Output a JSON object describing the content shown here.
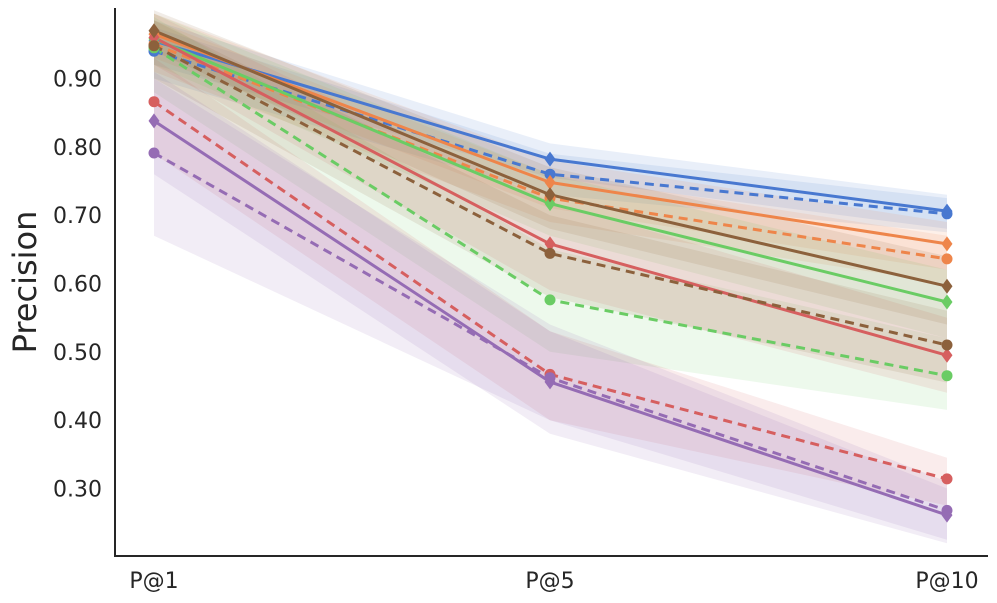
{
  "chart_data": {
    "type": "line",
    "title": "",
    "xlabel": "",
    "ylabel": "Precision",
    "categories": [
      "P@1",
      "P@5",
      "P@10"
    ],
    "ylim": [
      0.2,
      1.0
    ],
    "yticks": [
      "0.30",
      "0.40",
      "0.50",
      "0.60",
      "0.70",
      "0.80",
      "0.90"
    ],
    "grid": false,
    "legend": "none",
    "series": [
      {
        "color": "#4878d0",
        "dash": false,
        "marker": "diamond",
        "values": [
          0.955,
          0.782,
          0.706
        ],
        "band": [
          [
            0.985,
            0.92
          ],
          [
            0.805,
            0.755
          ],
          [
            0.73,
            0.68
          ]
        ]
      },
      {
        "color": "#4878d0",
        "dash": true,
        "marker": "circle",
        "values": [
          0.94,
          0.76,
          0.702
        ],
        "band": [
          [
            0.975,
            0.9
          ],
          [
            0.79,
            0.73
          ],
          [
            0.725,
            0.675
          ]
        ]
      },
      {
        "color": "#ee854a",
        "dash": false,
        "marker": "diamond",
        "values": [
          0.965,
          0.748,
          0.658
        ],
        "band": [
          [
            0.995,
            0.93
          ],
          [
            0.78,
            0.71
          ],
          [
            0.69,
            0.62
          ]
        ]
      },
      {
        "color": "#ee854a",
        "dash": true,
        "marker": "circle",
        "values": [
          0.95,
          0.725,
          0.636
        ],
        "band": [
          [
            0.985,
            0.91
          ],
          [
            0.76,
            0.69
          ],
          [
            0.67,
            0.6
          ]
        ]
      },
      {
        "color": "#6acc64",
        "dash": false,
        "marker": "diamond",
        "values": [
          0.958,
          0.717,
          0.573
        ],
        "band": [
          [
            0.995,
            0.92
          ],
          [
            0.76,
            0.67
          ],
          [
            0.62,
            0.52
          ]
        ]
      },
      {
        "color": "#6acc64",
        "dash": true,
        "marker": "circle",
        "values": [
          0.945,
          0.576,
          0.465
        ],
        "band": [
          [
            0.99,
            0.88
          ],
          [
            0.65,
            0.5
          ],
          [
            0.52,
            0.415
          ]
        ]
      },
      {
        "color": "#d65f5f",
        "dash": false,
        "marker": "diamond",
        "values": [
          0.96,
          0.658,
          0.495
        ],
        "band": [
          [
            0.995,
            0.92
          ],
          [
            0.72,
            0.59
          ],
          [
            0.55,
            0.44
          ]
        ]
      },
      {
        "color": "#d65f5f",
        "dash": true,
        "marker": "circle",
        "values": [
          0.866,
          0.467,
          0.314
        ],
        "band": [
          [
            0.93,
            0.79
          ],
          [
            0.53,
            0.4
          ],
          [
            0.345,
            0.275
          ]
        ]
      },
      {
        "color": "#956cb4",
        "dash": false,
        "marker": "diamond",
        "values": [
          0.838,
          0.456,
          0.261
        ],
        "band": [
          [
            0.91,
            0.76
          ],
          [
            0.53,
            0.38
          ],
          [
            0.3,
            0.22
          ]
        ]
      },
      {
        "color": "#956cb4",
        "dash": true,
        "marker": "circle",
        "values": [
          0.791,
          0.462,
          0.268
        ],
        "band": [
          [
            0.9,
            0.67
          ],
          [
            0.54,
            0.4
          ],
          [
            0.31,
            0.225
          ]
        ]
      },
      {
        "color": "#8c613c",
        "dash": false,
        "marker": "diamond",
        "values": [
          0.97,
          0.73,
          0.596
        ],
        "band": [
          [
            1.0,
            0.94
          ],
          [
            0.77,
            0.68
          ],
          [
            0.64,
            0.54
          ]
        ]
      },
      {
        "color": "#8c613c",
        "dash": true,
        "marker": "circle",
        "values": [
          0.948,
          0.644,
          0.51
        ],
        "band": [
          [
            0.985,
            0.9
          ],
          [
            0.7,
            0.58
          ],
          [
            0.56,
            0.455
          ]
        ]
      }
    ]
  }
}
